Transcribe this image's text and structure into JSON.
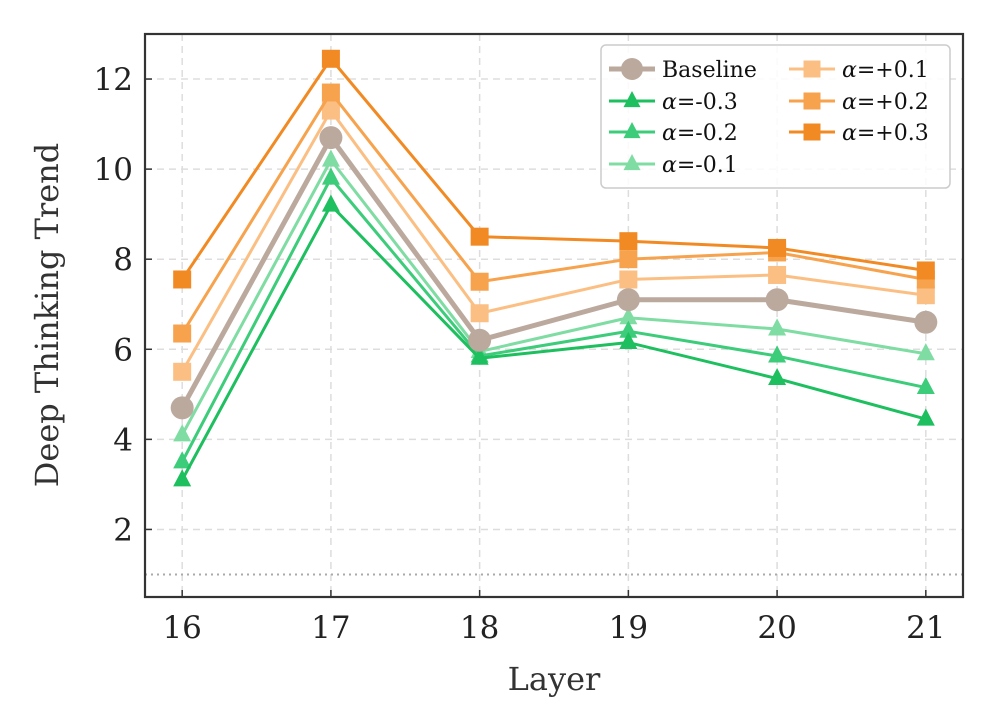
{
  "chart_data": {
    "type": "line",
    "title": "",
    "xlabel": "Layer",
    "ylabel": "Deep Thinking Trend",
    "x": [
      16,
      17,
      18,
      19,
      20,
      21
    ],
    "xticks": [
      "16",
      "17",
      "18",
      "19",
      "20",
      "21"
    ],
    "yticks": [
      "2",
      "4",
      "6",
      "8",
      "10",
      "12"
    ],
    "ytick_values": [
      2,
      4,
      6,
      8,
      10,
      12
    ],
    "xlim": [
      15.75,
      21.25
    ],
    "ylim": [
      0.5,
      13.0
    ],
    "grid": true,
    "reference_line": {
      "y": 1.0,
      "style": "dotted",
      "color": "#aaaaaa"
    },
    "legend": {
      "placement": "top-right",
      "columns": 2
    },
    "series": [
      {
        "name": "Baseline",
        "marker": "circle",
        "color": "#bca99e",
        "values": [
          4.7,
          10.7,
          6.2,
          7.1,
          7.1,
          6.6
        ]
      },
      {
        "name": "α=-0.3",
        "marker": "triangle",
        "color": "#1dbf5e",
        "values": [
          3.1,
          9.2,
          5.8,
          6.15,
          5.35,
          4.45
        ]
      },
      {
        "name": "α=-0.2",
        "marker": "triangle",
        "color": "#3ccc7a",
        "values": [
          3.5,
          9.8,
          5.85,
          6.4,
          5.85,
          5.15
        ]
      },
      {
        "name": "α=-0.1",
        "marker": "triangle",
        "color": "#7fdca3",
        "values": [
          4.1,
          10.2,
          5.95,
          6.7,
          6.45,
          5.9
        ]
      },
      {
        "name": "α=+0.1",
        "marker": "square",
        "color": "#fbbf83",
        "values": [
          5.5,
          11.3,
          6.8,
          7.55,
          7.65,
          7.2
        ]
      },
      {
        "name": "α=+0.2",
        "marker": "square",
        "color": "#f7a24d",
        "values": [
          6.35,
          11.7,
          7.5,
          8.0,
          8.15,
          7.55
        ]
      },
      {
        "name": "α=+0.3",
        "marker": "square",
        "color": "#f28a24",
        "values": [
          7.55,
          12.45,
          8.5,
          8.4,
          8.25,
          7.75
        ]
      }
    ]
  },
  "legend_labels": {
    "baseline": "Baseline",
    "alpha_m03_sym": "α",
    "alpha_m03_val": "=-0.3",
    "alpha_m02_sym": "α",
    "alpha_m02_val": "=-0.2",
    "alpha_m01_sym": "α",
    "alpha_m01_val": "=-0.1",
    "alpha_p01_sym": "α",
    "alpha_p01_val": "=+0.1",
    "alpha_p02_sym": "α",
    "alpha_p02_val": "=+0.2",
    "alpha_p03_sym": "α",
    "alpha_p03_val": "=+0.3"
  }
}
